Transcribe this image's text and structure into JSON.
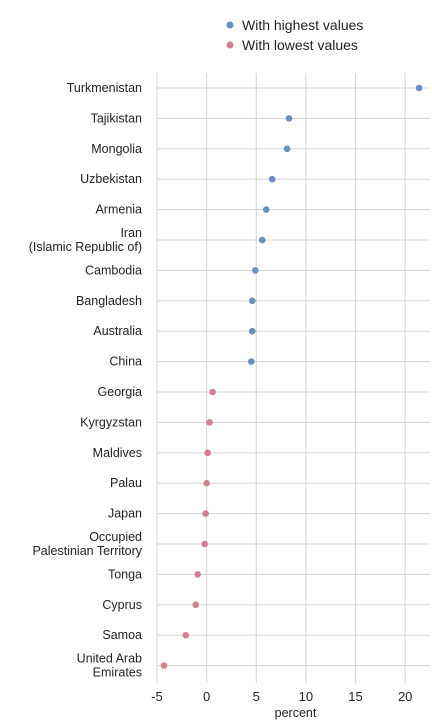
{
  "chart_data": {
    "type": "scatter",
    "orientation": "horizontal-dot",
    "categories": [
      "Turkmenistan",
      "Tajikistan",
      "Mongolia",
      "Uzbekistan",
      "Armenia",
      "Iran\n(Islamic Republic of)",
      "Cambodia",
      "Bangladesh",
      "Australia",
      "China",
      "Georgia",
      "Kyrgyzstan",
      "Maldives",
      "Palau",
      "Japan",
      "Occupied\nPalestinian Territory",
      "Tonga",
      "Cyprus",
      "Samoa",
      "United Arab\nEmirates"
    ],
    "series": [
      {
        "name": "With highest values",
        "color": "#6a8fbd",
        "category_indices": [
          0,
          1,
          2,
          3,
          4,
          5,
          6,
          7,
          8,
          9
        ],
        "values": [
          21.4,
          8.3,
          8.1,
          6.6,
          6.0,
          5.6,
          4.9,
          4.6,
          4.6,
          4.5
        ]
      },
      {
        "name": "With lowest values",
        "color": "#d1808e",
        "category_indices": [
          10,
          11,
          12,
          13,
          14,
          15,
          16,
          17,
          18,
          19
        ],
        "values": [
          0.6,
          0.3,
          0.1,
          0.0,
          -0.1,
          -0.2,
          -0.9,
          -1.1,
          -2.1,
          -4.3
        ]
      }
    ],
    "xlabel": "percent",
    "ylabel": "",
    "xlim": [
      -5,
      22.5
    ],
    "xticks": [
      -5,
      0,
      5,
      10,
      15,
      20
    ],
    "legend_position": "top",
    "grid": true
  }
}
